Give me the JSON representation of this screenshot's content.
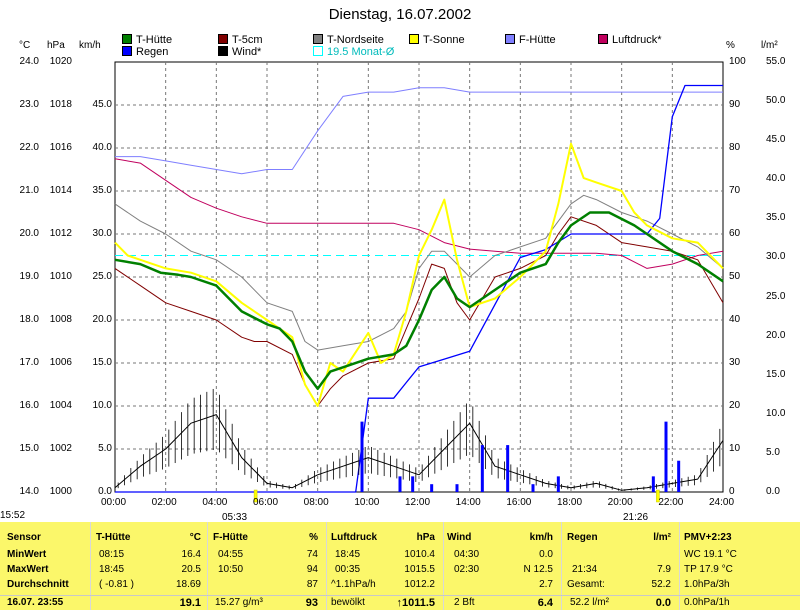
{
  "chart_data": {
    "type": "line",
    "title": "Dienstag, 16.07.2002",
    "x_ticks": [
      "00:00",
      "02:00",
      "04:00",
      "06:00",
      "08:00",
      "10:00",
      "12:00",
      "14:00",
      "16:00",
      "18:00",
      "20:00",
      "22:00",
      "24:00"
    ],
    "x_range_hours": [
      0,
      24
    ],
    "grid": true,
    "legend_position": "top",
    "axes": {
      "celsius": {
        "label": "°C",
        "ticks": [
          "24.0",
          "23.0",
          "22.0",
          "21.0",
          "20.0",
          "19.0",
          "18.0",
          "17.0",
          "16.0",
          "15.0",
          "14.0"
        ],
        "range": [
          14,
          24
        ]
      },
      "hpa": {
        "label": "hPa",
        "ticks": [
          "1020",
          "1018",
          "1016",
          "1014",
          "1012",
          "1010",
          "1008",
          "1006",
          "1004",
          "1002",
          "1000"
        ],
        "range": [
          1000,
          1020
        ]
      },
      "kmh": {
        "label": "km/h",
        "ticks": [
          "45.0",
          "40.0",
          "35.0",
          "30.0",
          "25.0",
          "20.0",
          "15.0",
          "10.0",
          "5.0",
          "0.0"
        ],
        "range": [
          0,
          50
        ]
      },
      "percent": {
        "label": "%",
        "ticks": [
          "100",
          "90",
          "80",
          "70",
          "60",
          "50",
          "40",
          "30",
          "20",
          "10",
          "0"
        ],
        "range": [
          0,
          100
        ]
      },
      "rain": {
        "label": "l/m²",
        "ticks": [
          "55.0",
          "50.0",
          "45.0",
          "40.0",
          "35.0",
          "30.0",
          "25.0",
          "20.0",
          "15.0",
          "10.0",
          "5.0",
          "0.0"
        ],
        "range": [
          0,
          55
        ]
      }
    },
    "series": [
      {
        "name": "T-Hütte",
        "color": "#008000",
        "axis": "celsius",
        "points": [
          [
            0,
            19.4
          ],
          [
            1,
            19.3
          ],
          [
            1.8,
            19.1
          ],
          [
            2.5,
            19.05
          ],
          [
            3,
            19
          ],
          [
            4,
            18.8
          ],
          [
            4.5,
            18.5
          ],
          [
            5,
            18.2
          ],
          [
            6,
            17.9
          ],
          [
            6.5,
            17.8
          ],
          [
            7,
            17.5
          ],
          [
            7.5,
            16.8
          ],
          [
            8,
            16.4
          ],
          [
            8.5,
            16.8
          ],
          [
            9,
            16.9
          ],
          [
            10,
            17.1
          ],
          [
            11,
            17.2
          ],
          [
            11.5,
            17.4
          ],
          [
            12,
            18
          ],
          [
            12.5,
            18.7
          ],
          [
            13,
            19
          ],
          [
            13.5,
            18.5
          ],
          [
            14,
            18.3
          ],
          [
            15,
            18.7
          ],
          [
            16,
            19.1
          ],
          [
            17,
            19.3
          ],
          [
            17.5,
            19.8
          ],
          [
            18,
            20.2
          ],
          [
            18.75,
            20.5
          ],
          [
            19.5,
            20.5
          ],
          [
            20.5,
            20.2
          ],
          [
            21,
            20
          ],
          [
            22,
            19.6
          ],
          [
            23,
            19.3
          ],
          [
            24,
            18.9
          ]
        ]
      },
      {
        "name": "T-5cm",
        "color": "#800000",
        "axis": "celsius",
        "points": [
          [
            0,
            19.2
          ],
          [
            1,
            18.8
          ],
          [
            2,
            18.4
          ],
          [
            3,
            18.2
          ],
          [
            4,
            18
          ],
          [
            5,
            17.6
          ],
          [
            5.5,
            17.5
          ],
          [
            6,
            17.5
          ],
          [
            7,
            17.2
          ],
          [
            7.5,
            16.5
          ],
          [
            8,
            16
          ],
          [
            8.5,
            16.4
          ],
          [
            9,
            16.7
          ],
          [
            10,
            17
          ],
          [
            11,
            17.1
          ],
          [
            11.5,
            17.8
          ],
          [
            12,
            18.5
          ],
          [
            12.5,
            19.3
          ],
          [
            13,
            19.2
          ],
          [
            13.5,
            18.4
          ],
          [
            14,
            18
          ],
          [
            15,
            19
          ],
          [
            16,
            19.2
          ],
          [
            17,
            19.5
          ],
          [
            17.5,
            20
          ],
          [
            18,
            20.4
          ],
          [
            19,
            20.2
          ],
          [
            20,
            19.8
          ],
          [
            21,
            19.7
          ],
          [
            22,
            19.6
          ],
          [
            23,
            19.4
          ],
          [
            24,
            18.4
          ]
        ]
      },
      {
        "name": "T-Nordseite",
        "color": "#808080",
        "axis": "celsius",
        "points": [
          [
            0,
            20.7
          ],
          [
            1,
            20.3
          ],
          [
            2,
            20
          ],
          [
            3,
            19.6
          ],
          [
            4,
            19.4
          ],
          [
            5,
            19
          ],
          [
            6,
            18.4
          ],
          [
            7,
            18.2
          ],
          [
            7.5,
            17.5
          ],
          [
            8,
            17.3
          ],
          [
            9,
            17.4
          ],
          [
            10,
            17.5
          ],
          [
            11,
            17.8
          ],
          [
            11.5,
            18.2
          ],
          [
            12,
            19.2
          ],
          [
            12.5,
            19.6
          ],
          [
            13,
            19.6
          ],
          [
            14,
            19
          ],
          [
            15,
            19.5
          ],
          [
            16,
            19.7
          ],
          [
            17,
            19.9
          ],
          [
            18,
            20.7
          ],
          [
            18.5,
            20.9
          ],
          [
            19,
            20.8
          ],
          [
            20,
            20.5
          ],
          [
            21,
            20.3
          ],
          [
            22,
            20
          ],
          [
            23,
            19.7
          ],
          [
            24,
            19.2
          ]
        ]
      },
      {
        "name": "T-Sonne",
        "color": "#ffff00",
        "axis": "celsius",
        "points": [
          [
            0,
            19.8
          ],
          [
            0.5,
            19.5
          ],
          [
            1,
            19.4
          ],
          [
            2,
            19.2
          ],
          [
            3,
            19.1
          ],
          [
            4,
            18.9
          ],
          [
            5,
            18.4
          ],
          [
            6,
            18
          ],
          [
            7,
            17.6
          ],
          [
            7.5,
            16.5
          ],
          [
            8,
            16
          ],
          [
            8.5,
            17
          ],
          [
            9,
            16.8
          ],
          [
            10,
            17.7
          ],
          [
            10.5,
            17
          ],
          [
            11,
            17.2
          ],
          [
            11.5,
            18.2
          ],
          [
            12,
            19.5
          ],
          [
            12.5,
            20.1
          ],
          [
            13,
            20.8
          ],
          [
            13.5,
            19.4
          ],
          [
            14,
            18.3
          ],
          [
            15,
            18.5
          ],
          [
            16,
            19
          ],
          [
            17,
            19.6
          ],
          [
            17.5,
            20.7
          ],
          [
            18,
            22.1
          ],
          [
            18.5,
            21.3
          ],
          [
            19,
            21.2
          ],
          [
            20,
            21
          ],
          [
            20.5,
            20.5
          ],
          [
            21,
            20.2
          ],
          [
            22,
            19.9
          ],
          [
            23,
            19.8
          ],
          [
            24,
            19.2
          ]
        ]
      },
      {
        "name": "F-Hütte",
        "color": "#7f7fff",
        "axis": "percent",
        "points": [
          [
            0,
            78
          ],
          [
            1,
            78
          ],
          [
            2,
            77
          ],
          [
            3,
            76
          ],
          [
            4,
            75
          ],
          [
            5,
            74
          ],
          [
            6,
            75
          ],
          [
            7,
            75
          ],
          [
            8,
            84
          ],
          [
            9,
            92
          ],
          [
            10,
            93
          ],
          [
            11,
            93
          ],
          [
            12,
            94
          ],
          [
            13,
            94
          ],
          [
            14,
            93
          ],
          [
            15,
            93
          ],
          [
            16,
            93
          ],
          [
            17,
            93
          ],
          [
            18,
            93
          ],
          [
            19,
            93
          ],
          [
            20,
            93
          ],
          [
            21,
            93
          ],
          [
            22,
            93
          ],
          [
            23,
            93
          ],
          [
            24,
            93
          ]
        ]
      },
      {
        "name": "Luftdruck*",
        "color": "#c0005e",
        "axis": "hpa",
        "points": [
          [
            0,
            1015.5
          ],
          [
            1,
            1015.3
          ],
          [
            2,
            1014.5
          ],
          [
            3,
            1013.7
          ],
          [
            4,
            1013.2
          ],
          [
            5,
            1012.8
          ],
          [
            6,
            1012.5
          ],
          [
            7,
            1012.5
          ],
          [
            8,
            1012.5
          ],
          [
            9,
            1012.5
          ],
          [
            10,
            1012.5
          ],
          [
            11,
            1012.5
          ],
          [
            12,
            1012.2
          ],
          [
            13,
            1011.6
          ],
          [
            14,
            1011.3
          ],
          [
            15,
            1011.2
          ],
          [
            16,
            1011.1
          ],
          [
            17,
            1011.1
          ],
          [
            18,
            1011.1
          ],
          [
            19,
            1011.1
          ],
          [
            20,
            1011
          ],
          [
            21,
            1010.4
          ],
          [
            22,
            1010.6
          ],
          [
            23,
            1011
          ],
          [
            24,
            1011.2
          ]
        ]
      },
      {
        "name": "Regen",
        "color": "#0000ff",
        "axis": "rain",
        "points": [
          [
            0,
            0
          ],
          [
            8,
            0
          ],
          [
            9.5,
            0
          ],
          [
            10,
            12
          ],
          [
            11,
            12
          ],
          [
            11.5,
            14
          ],
          [
            12,
            16
          ],
          [
            13,
            17
          ],
          [
            14,
            18
          ],
          [
            15,
            24
          ],
          [
            16,
            30
          ],
          [
            17,
            31
          ],
          [
            18,
            33
          ],
          [
            19,
            33
          ],
          [
            20,
            33
          ],
          [
            21,
            33
          ],
          [
            21.5,
            35
          ],
          [
            22,
            48
          ],
          [
            22.5,
            52
          ],
          [
            24,
            52
          ]
        ]
      },
      {
        "name": "Wind*",
        "color": "#000000",
        "axis": "kmh",
        "points": [
          [
            0,
            0.5
          ],
          [
            1,
            3
          ],
          [
            2,
            5
          ],
          [
            3,
            8
          ],
          [
            4,
            9
          ],
          [
            5,
            4
          ],
          [
            6,
            1
          ],
          [
            7,
            0.5
          ],
          [
            8,
            2
          ],
          [
            9,
            3
          ],
          [
            10,
            4
          ],
          [
            11,
            3
          ],
          [
            12,
            2
          ],
          [
            13,
            5
          ],
          [
            14,
            8
          ],
          [
            15,
            3
          ],
          [
            16,
            2
          ],
          [
            17,
            1
          ],
          [
            18,
            0.5
          ],
          [
            19,
            1
          ],
          [
            20,
            0.2
          ],
          [
            21,
            0.5
          ],
          [
            22,
            1
          ],
          [
            23,
            1.5
          ],
          [
            24,
            6
          ]
        ]
      }
    ],
    "reference_lines": [
      {
        "name": "19.5 Monat-Ø",
        "color": "#00ffff",
        "axis": "celsius",
        "value": 19.5
      }
    ],
    "markers": [
      {
        "label": "05:33",
        "hour": 5.55
      },
      {
        "label": "21:26",
        "hour": 21.43
      }
    ]
  },
  "ui": {
    "current_time": "15:52",
    "legend_colors": {
      "regen": "#0000ff",
      "wind": "#000000",
      "monat": "#00ffff"
    }
  },
  "table": {
    "c1": {
      "h": "Sensor",
      "r1": "MinWert",
      "r2": "MaxWert",
      "r3": "Durchschnitt",
      "r4": "16.07. 23:55"
    },
    "c2": {
      "h": "T-Hütte",
      "u": "°C",
      "t1": "08:15",
      "v1": "16.4",
      "t2": "18:45",
      "v2": "20.5",
      "t3": "( -0.81 )",
      "v3": "18.69",
      "v4": "19.1"
    },
    "c3": {
      "h": "F-Hütte",
      "u": "%",
      "t1": "04:55",
      "v1": "74",
      "t2": "10:50",
      "v2": "94",
      "v3": "87",
      "t4": "15.27 g/m³",
      "v4": "93"
    },
    "c4": {
      "h": "Luftdruck",
      "u": "hPa",
      "t1": "18:45",
      "v1": "1010.4",
      "t2": "00:35",
      "v2": "1015.5",
      "t3": "^1.1hPa/h",
      "v3": "1012.2",
      "t4": "bewölkt",
      "v4": "↑1011.5"
    },
    "c5": {
      "h": "Wind",
      "u": "km/h",
      "t1": "04:30",
      "v1": "0.0",
      "t2": "02:30",
      "v2": "N 12.5",
      "v3": "2.7",
      "t4": "2 Bft",
      "v4": "6.4"
    },
    "c6": {
      "h": "Regen",
      "u": "l/m²",
      "t2": "21:34",
      "v2": "7.9",
      "t3": "Gesamt:",
      "v3": "52.2",
      "t4": "52.2 l/m²",
      "v4": "0.0"
    },
    "c7": {
      "h": "PMV+2:23",
      "r1": "WC 19.1 °C",
      "r2": "TP 17.9 °C",
      "r3": "1.0hPa/3h",
      "r4": "0.0hPa/1h"
    }
  }
}
